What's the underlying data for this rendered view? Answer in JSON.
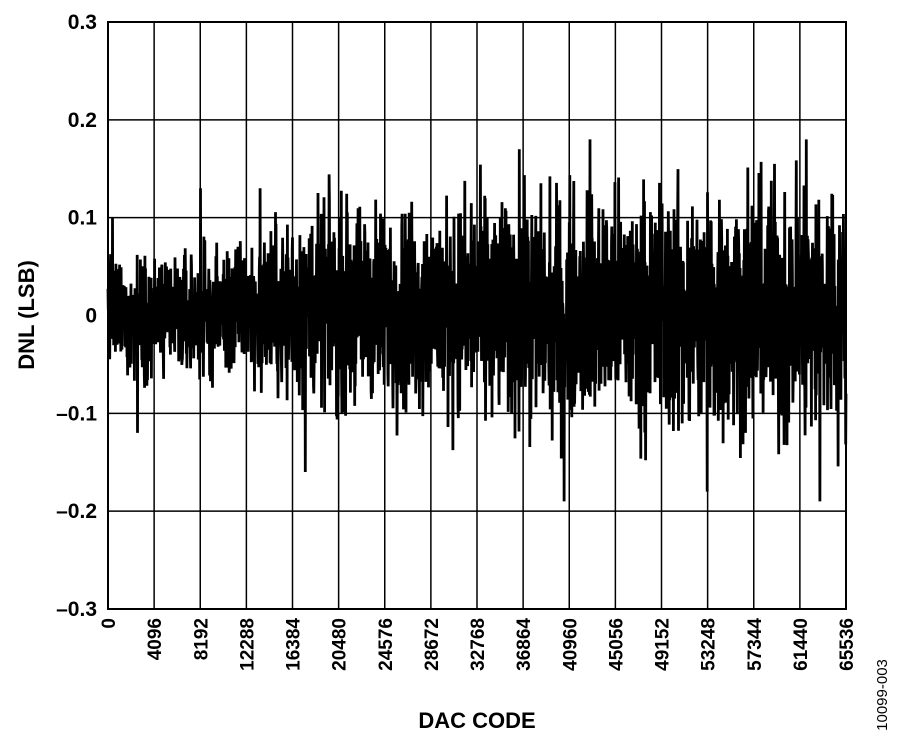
{
  "chart_data": {
    "type": "line",
    "title": "",
    "xlabel": "DAC CODE",
    "ylabel": "DNL (LSB)",
    "xlim": [
      0,
      65536
    ],
    "ylim": [
      -0.3,
      0.3
    ],
    "x_ticks": [
      0,
      4096,
      8192,
      12288,
      16384,
      20480,
      24576,
      28672,
      32768,
      36864,
      40960,
      45056,
      49152,
      53248,
      57344,
      61440,
      65536
    ],
    "y_ticks": [
      {
        "value": 0.3,
        "label": "0.3"
      },
      {
        "value": 0.2,
        "label": "0.2"
      },
      {
        "value": 0.1,
        "label": "0.1"
      },
      {
        "value": 0,
        "label": "0"
      },
      {
        "value": -0.1,
        "label": "–0.1"
      },
      {
        "value": -0.2,
        "label": "–0.2"
      },
      {
        "value": -0.3,
        "label": "–0.3"
      }
    ],
    "grid": true,
    "legend": "none",
    "line_color": "#000000",
    "series": [
      {
        "x": [
          0,
          4096,
          8192,
          12288,
          16384,
          20480,
          24576,
          28672,
          32768,
          36864,
          40960,
          45056,
          49152,
          53248,
          57344,
          61440,
          65536
        ],
        "upper_envelope": [
          0.06,
          0.07,
          0.07,
          0.08,
          0.11,
          0.12,
          0.12,
          0.12,
          0.13,
          0.13,
          0.13,
          0.13,
          0.14,
          0.14,
          0.14,
          0.15,
          0.14
        ],
        "lower_envelope": [
          -0.06,
          -0.07,
          -0.07,
          -0.07,
          -0.09,
          -0.1,
          -0.1,
          -0.11,
          -0.11,
          -0.12,
          -0.12,
          -0.12,
          -0.13,
          -0.13,
          -0.13,
          -0.14,
          -0.13
        ],
        "peaks_max": [
          {
            "x": 400,
            "y": 0.1
          },
          {
            "x": 8200,
            "y": 0.13
          },
          {
            "x": 13500,
            "y": 0.13
          },
          {
            "x": 36500,
            "y": 0.17
          },
          {
            "x": 42800,
            "y": 0.18
          },
          {
            "x": 62000,
            "y": 0.18
          }
        ],
        "peaks_min": [
          {
            "x": 2600,
            "y": -0.12
          },
          {
            "x": 17500,
            "y": -0.16
          },
          {
            "x": 40500,
            "y": -0.19
          },
          {
            "x": 53200,
            "y": -0.18
          },
          {
            "x": 63200,
            "y": -0.19
          }
        ]
      }
    ],
    "figure_id": "10099-003"
  }
}
